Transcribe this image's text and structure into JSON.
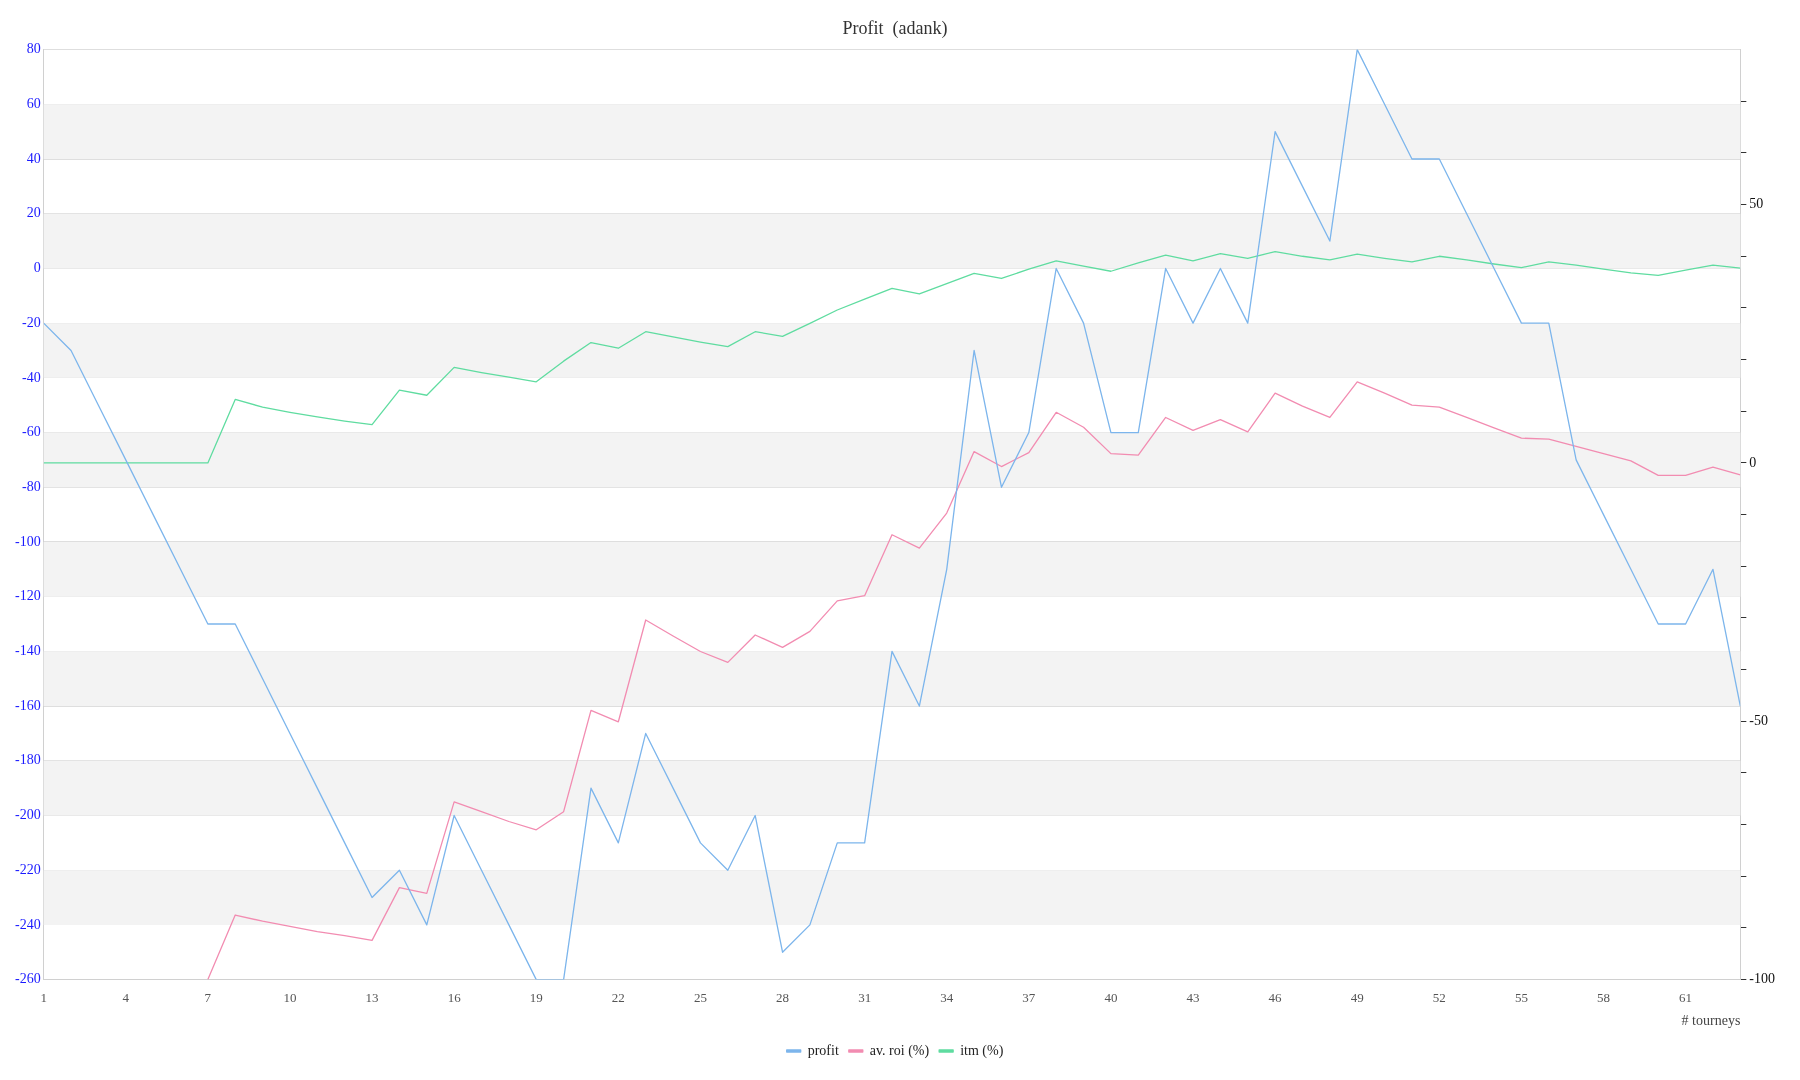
{
  "chart_data": {
    "type": "line",
    "title": "Profit  (adank)",
    "xlabel": "# tourneys",
    "x": [
      1,
      2,
      3,
      4,
      5,
      6,
      7,
      8,
      9,
      10,
      11,
      12,
      13,
      14,
      15,
      16,
      17,
      18,
      19,
      20,
      21,
      22,
      23,
      24,
      25,
      26,
      27,
      28,
      29,
      30,
      31,
      32,
      33,
      34,
      35,
      36,
      37,
      38,
      39,
      40,
      41,
      42,
      43,
      44,
      45,
      46,
      47,
      48,
      49,
      50,
      51,
      52,
      53,
      54,
      55,
      56,
      57,
      58,
      59,
      60,
      61,
      62,
      63
    ],
    "xlim": [
      1,
      63
    ],
    "xticks": [
      1,
      4,
      7,
      10,
      13,
      16,
      19,
      22,
      25,
      28,
      31,
      34,
      37,
      40,
      43,
      46,
      49,
      52,
      55,
      58,
      61
    ],
    "ylim": [
      -260,
      80
    ],
    "yticks": [
      -260,
      -240,
      -220,
      -200,
      -180,
      -160,
      -140,
      -120,
      -100,
      -80,
      -60,
      -40,
      -20,
      0,
      20,
      40,
      60,
      80
    ],
    "y2lim": [
      -100,
      80
    ],
    "y2ticks": [
      -100,
      {
        "value": -90,
        "label": null
      },
      {
        "value": -80,
        "label": null
      },
      {
        "value": -70,
        "label": null
      },
      {
        "value": -60,
        "label": null
      },
      -50,
      {
        "value": -40,
        "label": null
      },
      {
        "value": -30,
        "label": null
      },
      {
        "value": -20,
        "label": null
      },
      {
        "value": -10,
        "label": null
      },
      0,
      {
        "value": 10,
        "label": null
      },
      {
        "value": 20,
        "label": null
      },
      {
        "value": 30,
        "label": null
      },
      {
        "value": 40,
        "label": null
      },
      50,
      {
        "value": 60,
        "label": null
      },
      {
        "value": 70,
        "label": null
      }
    ],
    "grid": "y",
    "legend": "bottom",
    "marker": "none",
    "line_style": "solid",
    "bands": [
      {
        "axis": "y",
        "from": 40,
        "to": 60,
        "color": "#f3f3f3"
      },
      {
        "axis": "y",
        "from": 0,
        "to": 20,
        "color": "#f3f3f3"
      },
      {
        "axis": "y",
        "from": -40,
        "to": -20,
        "color": "#f3f3f3"
      },
      {
        "axis": "y",
        "from": -80,
        "to": -60,
        "color": "#f3f3f3"
      },
      {
        "axis": "y",
        "from": -120,
        "to": -100,
        "color": "#f3f3f3"
      },
      {
        "axis": "y",
        "from": -160,
        "to": -140,
        "color": "#f3f3f3"
      },
      {
        "axis": "y",
        "from": -200,
        "to": -180,
        "color": "#f3f3f3"
      },
      {
        "axis": "y",
        "from": -240,
        "to": -220,
        "color": "#f3f3f3"
      }
    ],
    "series": [
      {
        "name": "profit",
        "color": "#7cb5ec",
        "values": [
          -20,
          -30,
          -50,
          -70,
          -90,
          -110,
          -130,
          -130,
          -150,
          -170,
          -190,
          -210,
          -230,
          -220,
          -240,
          -200,
          -220,
          -240,
          -260,
          -260,
          -190,
          -210,
          -170,
          -190,
          -210,
          -220,
          -200,
          -250,
          -240,
          -210,
          -210,
          -140,
          -160,
          -110,
          -30,
          -80,
          -60,
          0,
          -20,
          -60,
          -60,
          0,
          -20,
          0,
          -20,
          50,
          30,
          10,
          80,
          60,
          40,
          40,
          20,
          0,
          -20,
          -20,
          -70,
          -90,
          -110,
          -130,
          -130,
          -110,
          -160
        ]
      },
      {
        "name": "av. roi (%)",
        "color": "#f28cb1",
        "axis": "y2",
        "values": [
          null,
          null,
          null,
          null,
          null,
          null,
          -100,
          -87.5,
          -88.7,
          -89.7,
          -90.7,
          -91.5,
          -92.4,
          -82.2,
          -83.3,
          -65.6,
          -67.5,
          -69.4,
          -71,
          -67.5,
          -47.9,
          -50.1,
          -30.4,
          -33.5,
          -36.5,
          -38.6,
          -33.3,
          -35.7,
          -32.6,
          -26.7,
          -25.7,
          -13.9,
          -16.5,
          -9.7,
          2.2,
          -0.7,
          2,
          9.8,
          6.9,
          1.8,
          1.5,
          8.8,
          6.3,
          8.4,
          6,
          13.5,
          11,
          8.8,
          15.7,
          13.5,
          11.2,
          10.8,
          8.8,
          6.8,
          4.8,
          4.6,
          3.2,
          1.8,
          0.4,
          -2.4,
          -2.4,
          -0.8,
          -2.3
        ]
      },
      {
        "name": "itm (%)",
        "color": "#5fdca0",
        "axis": "y2",
        "values": [
          0,
          0,
          0,
          0,
          0,
          0,
          0,
          12.3,
          10.8,
          9.8,
          8.9,
          8.1,
          7.4,
          14.1,
          13.1,
          18.5,
          17.5,
          16.6,
          15.7,
          19.7,
          23.3,
          22.2,
          25.4,
          24.4,
          23.4,
          22.5,
          25.4,
          24.5,
          27,
          29.6,
          31.7,
          33.8,
          32.7,
          34.7,
          36.7,
          35.7,
          37.5,
          39.1,
          38.1,
          37.1,
          38.7,
          40.2,
          39.1,
          40.5,
          39.6,
          40.9,
          40,
          39.3,
          40.4,
          39.6,
          38.9,
          40,
          39.3,
          38.5,
          37.8,
          38.9,
          38.3,
          37.5,
          36.8,
          36.3,
          37.3,
          38.3,
          37.7
        ]
      }
    ]
  }
}
